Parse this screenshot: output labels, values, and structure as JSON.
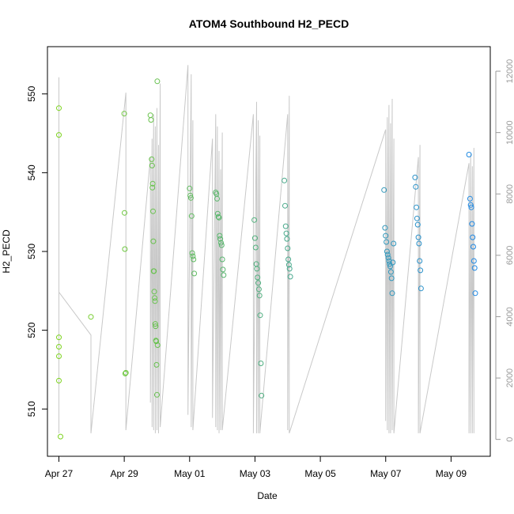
{
  "chart_data": {
    "type": "scatter",
    "title": "ATOM4 Southbound H2_PECD",
    "xlabel": "Date",
    "ylabel": "H2_PECD",
    "x_ticks": [
      "Apr 27",
      "Apr 29",
      "May 01",
      "May 03",
      "May 05",
      "May 07",
      "May 09"
    ],
    "x_tick_days": [
      0,
      2,
      4,
      6,
      8,
      10,
      12
    ],
    "xlim_days": [
      -0.35,
      13.2
    ],
    "ylim": [
      504,
      556
    ],
    "y_ticks": [
      510,
      520,
      530,
      540,
      550
    ],
    "y2lim": [
      -550,
      12800
    ],
    "y2_ticks": [
      0,
      2000,
      4000,
      6000,
      8000,
      10000,
      12000
    ],
    "series": [
      {
        "marker": "circle",
        "color_gradient": [
          "#7ed321",
          "#1e88e5"
        ],
        "x": [
          0.0,
          0.0,
          0.0,
          0.0,
          0.0,
          0.0,
          0.05,
          0.98,
          2.0,
          2.01,
          2.02,
          2.03,
          2.05,
          2.8,
          2.82,
          2.84,
          2.85,
          2.86,
          2.87,
          2.88,
          2.89,
          2.9,
          2.91,
          2.92,
          2.93,
          2.94,
          2.95,
          2.96,
          2.97,
          2.98,
          2.99,
          3.0,
          3.01,
          3.02,
          4.0,
          4.02,
          4.04,
          4.06,
          4.08,
          4.1,
          4.12,
          4.14,
          4.8,
          4.82,
          4.84,
          4.86,
          4.88,
          4.9,
          4.92,
          4.94,
          4.96,
          4.98,
          5.0,
          5.02,
          5.04,
          5.98,
          6.0,
          6.02,
          6.04,
          6.06,
          6.08,
          6.1,
          6.12,
          6.14,
          6.16,
          6.18,
          6.2,
          6.9,
          6.92,
          6.94,
          6.96,
          6.98,
          7.0,
          7.02,
          7.04,
          7.06,
          7.08,
          9.95,
          9.98,
          10.0,
          10.02,
          10.04,
          10.06,
          10.08,
          10.1,
          10.12,
          10.14,
          10.16,
          10.18,
          10.2,
          10.22,
          10.24,
          10.9,
          10.92,
          10.94,
          10.96,
          10.98,
          11.0,
          11.02,
          11.04,
          11.06,
          11.08,
          12.55,
          12.58,
          12.6,
          12.62,
          12.64,
          12.66,
          12.68,
          12.7,
          12.72,
          12.74
        ],
        "y": [
          548.2,
          544.8,
          519.1,
          517.9,
          516.7,
          513.6,
          506.5,
          521.7,
          547.5,
          534.9,
          530.3,
          514.5,
          514.6,
          547.3,
          546.7,
          541.7,
          540.9,
          538.1,
          538.6,
          535.1,
          531.3,
          527.5,
          527.5,
          524.9,
          524.1,
          523.7,
          520.8,
          520.5,
          518.7,
          518.6,
          515.6,
          511.8,
          551.6,
          518.1,
          538.0,
          537.1,
          536.8,
          534.5,
          529.8,
          529.4,
          529.0,
          527.2,
          537.5,
          537.3,
          536.7,
          534.8,
          534.4,
          534.3,
          532.0,
          531.6,
          531.1,
          530.8,
          529.0,
          527.7,
          527.0,
          534.0,
          531.7,
          530.5,
          528.4,
          527.8,
          526.7,
          526.0,
          525.2,
          524.4,
          521.9,
          515.8,
          511.7,
          539.0,
          535.8,
          533.2,
          532.3,
          531.6,
          530.4,
          529.0,
          528.3,
          527.8,
          526.8,
          537.8,
          533.0,
          532.0,
          531.2,
          530.0,
          529.6,
          529.2,
          528.8,
          528.4,
          528.1,
          527.4,
          526.6,
          524.7,
          528.6,
          531.0,
          539.4,
          538.2,
          535.6,
          534.2,
          533.4,
          531.8,
          531.0,
          528.8,
          527.6,
          525.3,
          542.3,
          536.7,
          535.9,
          535.6,
          533.5,
          531.8,
          530.6,
          528.8,
          527.9,
          524.7
        ]
      }
    ],
    "secondary_lines": [
      {
        "axis": "right",
        "color": "#c8c8c8",
        "x": [
          0.0,
          0.0,
          0.0,
          0.0,
          0.98,
          0.98,
          2.05,
          2.05,
          2.8,
          2.8,
          2.85,
          2.85,
          2.9,
          2.9,
          2.95,
          2.95,
          3.0,
          3.0,
          3.05,
          3.05,
          3.1,
          3.1,
          3.95,
          3.95,
          4.05,
          4.05,
          4.1,
          4.1,
          4.7,
          4.7,
          4.8,
          4.8,
          4.85,
          4.85,
          4.9,
          4.9,
          4.95,
          4.95,
          5.0,
          5.0,
          5.95,
          5.95,
          6.05,
          6.05,
          6.1,
          6.1,
          6.15,
          6.15,
          7.0,
          7.0,
          7.05,
          7.05,
          10.0,
          10.0,
          10.05,
          10.05,
          10.1,
          10.1,
          10.15,
          10.15,
          10.2,
          10.2,
          10.25,
          10.25,
          11.0,
          11.0,
          11.05,
          11.05,
          12.55,
          12.55,
          12.6,
          12.6,
          12.65,
          12.65,
          12.7,
          12.7
        ],
        "y": [
          200,
          11800,
          5200,
          4800,
          3400,
          200,
          11300,
          300,
          9200,
          1200,
          9800,
          400,
          10600,
          300,
          10200,
          200,
          10800,
          300,
          9600,
          200,
          11600,
          400,
          12200,
          800,
          11900,
          400,
          10400,
          300,
          9800,
          700,
          10600,
          400,
          10200,
          300,
          9400,
          200,
          8800,
          300,
          10000,
          300,
          10600,
          200,
          11000,
          200,
          10400,
          200,
          9900,
          200,
          10600,
          300,
          11200,
          200,
          10100,
          600,
          10500,
          300,
          10900,
          200,
          10300,
          200,
          11100,
          300,
          9800,
          200,
          9200,
          200,
          9600,
          200,
          9000,
          200,
          9300,
          200,
          8900,
          200,
          9500,
          200
        ]
      }
    ]
  }
}
